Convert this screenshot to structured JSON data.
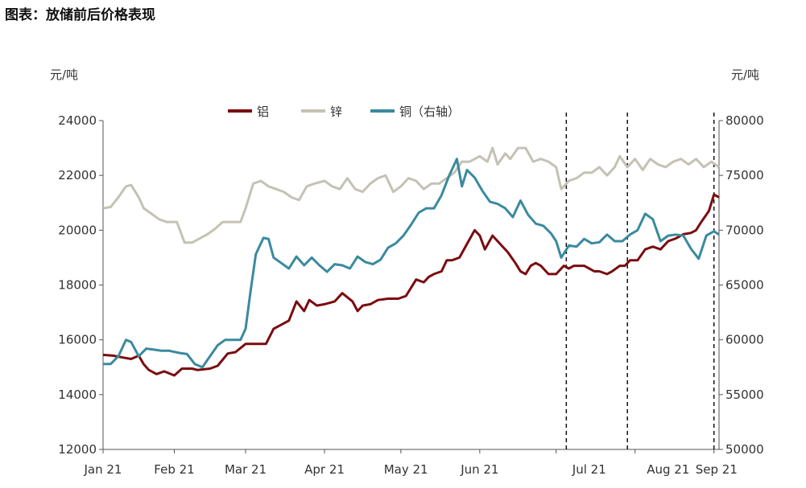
{
  "title": "图表：放储前后价格表现",
  "left_unit": "元/吨",
  "right_unit": "元/吨",
  "chart_data": {
    "type": "line",
    "x_ticks": [
      "Jan 21",
      "Feb 21",
      "Mar 21",
      "Apr 21",
      "May 21",
      "Jun 21",
      "Jul 21",
      "Aug 21",
      "Sep 21"
    ],
    "x_range": [
      "2021-01-04",
      "2021-09-03"
    ],
    "y_left_ticks": [
      "12000",
      "14000",
      "16000",
      "18000",
      "20000",
      "22000",
      "24000"
    ],
    "y_left_range": [
      12000,
      24000
    ],
    "y_right_ticks": [
      "50000",
      "55000",
      "60000",
      "65000",
      "70000",
      "75000",
      "80000"
    ],
    "y_right_range": [
      50000,
      80000
    ],
    "vertical_markers": [
      "2021-07-05",
      "2021-07-29",
      "2021-09-01"
    ],
    "series": [
      {
        "name": "铝",
        "color": "#7a0c10",
        "axis": "left",
        "points": [
          [
            "2021-01-04",
            15450
          ],
          [
            "2021-01-08",
            15420
          ],
          [
            "2021-01-12",
            15350
          ],
          [
            "2021-01-15",
            15300
          ],
          [
            "2021-01-18",
            15420
          ],
          [
            "2021-01-20",
            15100
          ],
          [
            "2021-01-22",
            14900
          ],
          [
            "2021-01-25",
            14750
          ],
          [
            "2021-01-28",
            14850
          ],
          [
            "2021-02-01",
            14700
          ],
          [
            "2021-02-04",
            14950
          ],
          [
            "2021-02-08",
            14950
          ],
          [
            "2021-02-10",
            14900
          ],
          [
            "2021-02-15",
            14950
          ],
          [
            "2021-02-18",
            15050
          ],
          [
            "2021-02-22",
            15500
          ],
          [
            "2021-02-25",
            15550
          ],
          [
            "2021-03-01",
            15850
          ],
          [
            "2021-03-05",
            15850
          ],
          [
            "2021-03-09",
            15850
          ],
          [
            "2021-03-12",
            16400
          ],
          [
            "2021-03-15",
            16550
          ],
          [
            "2021-03-18",
            16700
          ],
          [
            "2021-03-21",
            17400
          ],
          [
            "2021-03-24",
            17050
          ],
          [
            "2021-03-26",
            17450
          ],
          [
            "2021-03-29",
            17250
          ],
          [
            "2021-04-01",
            17300
          ],
          [
            "2021-04-05",
            17400
          ],
          [
            "2021-04-08",
            17700
          ],
          [
            "2021-04-12",
            17400
          ],
          [
            "2021-04-14",
            17050
          ],
          [
            "2021-04-16",
            17250
          ],
          [
            "2021-04-19",
            17300
          ],
          [
            "2021-04-22",
            17450
          ],
          [
            "2021-04-26",
            17500
          ],
          [
            "2021-04-30",
            17500
          ],
          [
            "2021-05-03",
            17600
          ],
          [
            "2021-05-05",
            17900
          ],
          [
            "2021-05-07",
            18200
          ],
          [
            "2021-05-10",
            18100
          ],
          [
            "2021-05-12",
            18300
          ],
          [
            "2021-05-14",
            18400
          ],
          [
            "2021-05-17",
            18500
          ],
          [
            "2021-05-19",
            18900
          ],
          [
            "2021-05-21",
            18900
          ],
          [
            "2021-05-24",
            19000
          ],
          [
            "2021-05-27",
            19500
          ],
          [
            "2021-05-30",
            20000
          ],
          [
            "2021-06-01",
            19800
          ],
          [
            "2021-06-03",
            19300
          ],
          [
            "2021-06-06",
            19800
          ],
          [
            "2021-06-09",
            19500
          ],
          [
            "2021-06-12",
            19200
          ],
          [
            "2021-06-15",
            18800
          ],
          [
            "2021-06-17",
            18500
          ],
          [
            "2021-06-19",
            18400
          ],
          [
            "2021-06-21",
            18700
          ],
          [
            "2021-06-23",
            18800
          ],
          [
            "2021-06-25",
            18700
          ],
          [
            "2021-06-28",
            18400
          ],
          [
            "2021-07-01",
            18400
          ],
          [
            "2021-07-04",
            18700
          ],
          [
            "2021-07-06",
            18600
          ],
          [
            "2021-07-08",
            18700
          ],
          [
            "2021-07-12",
            18700
          ],
          [
            "2021-07-14",
            18600
          ],
          [
            "2021-07-16",
            18500
          ],
          [
            "2021-07-18",
            18500
          ],
          [
            "2021-07-21",
            18400
          ],
          [
            "2021-07-23",
            18500
          ],
          [
            "2021-07-26",
            18700
          ],
          [
            "2021-07-28",
            18700
          ],
          [
            "2021-07-30",
            18900
          ],
          [
            "2021-08-02",
            18900
          ],
          [
            "2021-08-05",
            19300
          ],
          [
            "2021-08-08",
            19400
          ],
          [
            "2021-08-11",
            19300
          ],
          [
            "2021-08-14",
            19600
          ],
          [
            "2021-08-17",
            19700
          ],
          [
            "2021-08-20",
            19850
          ],
          [
            "2021-08-23",
            19900
          ],
          [
            "2021-08-25",
            20000
          ],
          [
            "2021-08-27",
            20300
          ],
          [
            "2021-08-30",
            20700
          ],
          [
            "2021-09-01",
            21300
          ],
          [
            "2021-09-03",
            21200
          ]
        ]
      },
      {
        "name": "锌",
        "color": "#c4c2b4",
        "axis": "left",
        "points": [
          [
            "2021-01-04",
            20800
          ],
          [
            "2021-01-07",
            20850
          ],
          [
            "2021-01-10",
            21200
          ],
          [
            "2021-01-13",
            21600
          ],
          [
            "2021-01-15",
            21650
          ],
          [
            "2021-01-18",
            21200
          ],
          [
            "2021-01-20",
            20800
          ],
          [
            "2021-01-23",
            20600
          ],
          [
            "2021-01-26",
            20400
          ],
          [
            "2021-01-29",
            20300
          ],
          [
            "2021-02-02",
            20300
          ],
          [
            "2021-02-05",
            19550
          ],
          [
            "2021-02-08",
            19550
          ],
          [
            "2021-02-11",
            19700
          ],
          [
            "2021-02-14",
            19850
          ],
          [
            "2021-02-17",
            20050
          ],
          [
            "2021-02-20",
            20300
          ],
          [
            "2021-02-24",
            20300
          ],
          [
            "2021-02-27",
            20300
          ],
          [
            "2021-03-01",
            20800
          ],
          [
            "2021-03-04",
            21700
          ],
          [
            "2021-03-07",
            21800
          ],
          [
            "2021-03-10",
            21600
          ],
          [
            "2021-03-13",
            21500
          ],
          [
            "2021-03-16",
            21400
          ],
          [
            "2021-03-19",
            21200
          ],
          [
            "2021-03-22",
            21100
          ],
          [
            "2021-03-25",
            21600
          ],
          [
            "2021-03-28",
            21700
          ],
          [
            "2021-04-01",
            21800
          ],
          [
            "2021-04-04",
            21600
          ],
          [
            "2021-04-07",
            21500
          ],
          [
            "2021-04-10",
            21900
          ],
          [
            "2021-04-13",
            21500
          ],
          [
            "2021-04-16",
            21400
          ],
          [
            "2021-04-19",
            21700
          ],
          [
            "2021-04-22",
            21900
          ],
          [
            "2021-04-25",
            22000
          ],
          [
            "2021-04-28",
            21400
          ],
          [
            "2021-05-01",
            21600
          ],
          [
            "2021-05-04",
            21900
          ],
          [
            "2021-05-07",
            21800
          ],
          [
            "2021-05-10",
            21500
          ],
          [
            "2021-05-13",
            21700
          ],
          [
            "2021-05-16",
            21700
          ],
          [
            "2021-05-19",
            21900
          ],
          [
            "2021-05-22",
            22100
          ],
          [
            "2021-05-25",
            22500
          ],
          [
            "2021-05-28",
            22500
          ],
          [
            "2021-06-01",
            22700
          ],
          [
            "2021-06-04",
            22500
          ],
          [
            "2021-06-06",
            23000
          ],
          [
            "2021-06-08",
            22400
          ],
          [
            "2021-06-11",
            22800
          ],
          [
            "2021-06-13",
            22600
          ],
          [
            "2021-06-16",
            23000
          ],
          [
            "2021-06-19",
            23000
          ],
          [
            "2021-06-22",
            22500
          ],
          [
            "2021-06-25",
            22600
          ],
          [
            "2021-06-28",
            22500
          ],
          [
            "2021-07-01",
            22300
          ],
          [
            "2021-07-03",
            21500
          ],
          [
            "2021-07-06",
            21800
          ],
          [
            "2021-07-09",
            21900
          ],
          [
            "2021-07-12",
            22100
          ],
          [
            "2021-07-15",
            22100
          ],
          [
            "2021-07-18",
            22300
          ],
          [
            "2021-07-21",
            22000
          ],
          [
            "2021-07-24",
            22300
          ],
          [
            "2021-07-26",
            22700
          ],
          [
            "2021-07-29",
            22300
          ],
          [
            "2021-08-01",
            22600
          ],
          [
            "2021-08-04",
            22200
          ],
          [
            "2021-08-07",
            22600
          ],
          [
            "2021-08-10",
            22400
          ],
          [
            "2021-08-13",
            22300
          ],
          [
            "2021-08-16",
            22500
          ],
          [
            "2021-08-19",
            22600
          ],
          [
            "2021-08-22",
            22400
          ],
          [
            "2021-08-25",
            22600
          ],
          [
            "2021-08-28",
            22300
          ],
          [
            "2021-08-31",
            22500
          ],
          [
            "2021-09-03",
            22300
          ]
        ]
      },
      {
        "name": "铜（右轴）",
        "color": "#3a8a9e",
        "axis": "right",
        "points": [
          [
            "2021-01-04",
            57800
          ],
          [
            "2021-01-07",
            57800
          ],
          [
            "2021-01-10",
            58500
          ],
          [
            "2021-01-13",
            60000
          ],
          [
            "2021-01-15",
            59800
          ],
          [
            "2021-01-18",
            58500
          ],
          [
            "2021-01-21",
            59200
          ],
          [
            "2021-01-24",
            59100
          ],
          [
            "2021-01-27",
            59000
          ],
          [
            "2021-01-30",
            59000
          ],
          [
            "2021-02-03",
            58800
          ],
          [
            "2021-02-06",
            58700
          ],
          [
            "2021-02-09",
            57800
          ],
          [
            "2021-02-12",
            57500
          ],
          [
            "2021-02-15",
            58500
          ],
          [
            "2021-02-18",
            59500
          ],
          [
            "2021-02-21",
            60000
          ],
          [
            "2021-02-24",
            60000
          ],
          [
            "2021-02-27",
            60000
          ],
          [
            "2021-03-01",
            61000
          ],
          [
            "2021-03-03",
            64500
          ],
          [
            "2021-03-05",
            67800
          ],
          [
            "2021-03-08",
            69300
          ],
          [
            "2021-03-10",
            69200
          ],
          [
            "2021-03-12",
            67500
          ],
          [
            "2021-03-15",
            67000
          ],
          [
            "2021-03-18",
            66500
          ],
          [
            "2021-03-21",
            67600
          ],
          [
            "2021-03-24",
            66800
          ],
          [
            "2021-03-27",
            67500
          ],
          [
            "2021-03-30",
            66800
          ],
          [
            "2021-04-02",
            66200
          ],
          [
            "2021-04-05",
            66900
          ],
          [
            "2021-04-08",
            66800
          ],
          [
            "2021-04-11",
            66500
          ],
          [
            "2021-04-14",
            67600
          ],
          [
            "2021-04-17",
            67100
          ],
          [
            "2021-04-20",
            66900
          ],
          [
            "2021-04-23",
            67300
          ],
          [
            "2021-04-26",
            68400
          ],
          [
            "2021-04-29",
            68800
          ],
          [
            "2021-05-02",
            69500
          ],
          [
            "2021-05-05",
            70500
          ],
          [
            "2021-05-08",
            71600
          ],
          [
            "2021-05-11",
            72000
          ],
          [
            "2021-05-14",
            72000
          ],
          [
            "2021-05-17",
            73200
          ],
          [
            "2021-05-20",
            75000
          ],
          [
            "2021-05-23",
            76500
          ],
          [
            "2021-05-25",
            74000
          ],
          [
            "2021-05-27",
            75500
          ],
          [
            "2021-05-30",
            74800
          ],
          [
            "2021-06-02",
            73600
          ],
          [
            "2021-06-05",
            72600
          ],
          [
            "2021-06-08",
            72400
          ],
          [
            "2021-06-11",
            72000
          ],
          [
            "2021-06-14",
            71200
          ],
          [
            "2021-06-17",
            72700
          ],
          [
            "2021-06-20",
            71400
          ],
          [
            "2021-06-23",
            70600
          ],
          [
            "2021-06-26",
            70400
          ],
          [
            "2021-06-29",
            69700
          ],
          [
            "2021-07-01",
            69000
          ],
          [
            "2021-07-03",
            67500
          ],
          [
            "2021-07-06",
            68600
          ],
          [
            "2021-07-09",
            68500
          ],
          [
            "2021-07-12",
            69200
          ],
          [
            "2021-07-15",
            68800
          ],
          [
            "2021-07-18",
            68900
          ],
          [
            "2021-07-21",
            69600
          ],
          [
            "2021-07-24",
            69000
          ],
          [
            "2021-07-27",
            69000
          ],
          [
            "2021-07-30",
            69600
          ],
          [
            "2021-08-02",
            70000
          ],
          [
            "2021-08-05",
            71500
          ],
          [
            "2021-08-08",
            71000
          ],
          [
            "2021-08-11",
            69000
          ],
          [
            "2021-08-14",
            69500
          ],
          [
            "2021-08-17",
            69600
          ],
          [
            "2021-08-20",
            69500
          ],
          [
            "2021-08-23",
            68300
          ],
          [
            "2021-08-26",
            67400
          ],
          [
            "2021-08-29",
            69500
          ],
          [
            "2021-09-01",
            69900
          ],
          [
            "2021-09-03",
            69600
          ]
        ]
      }
    ]
  }
}
